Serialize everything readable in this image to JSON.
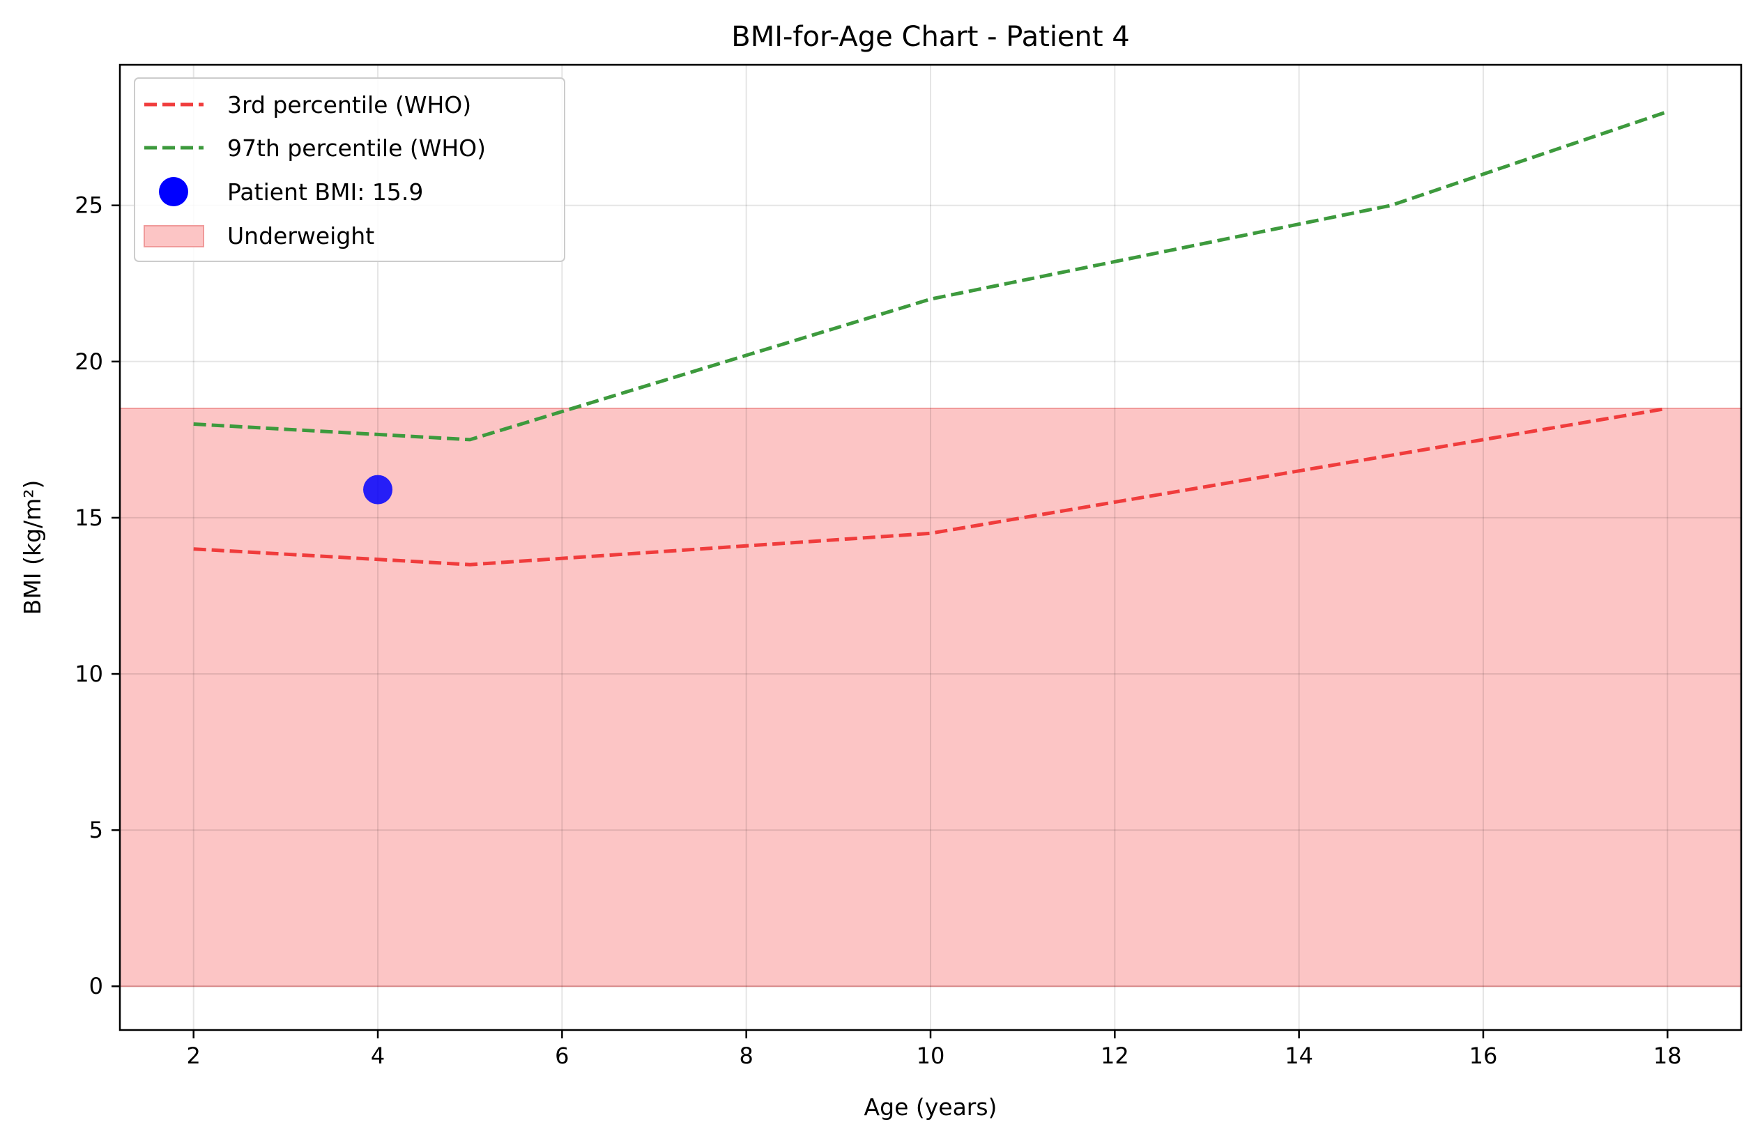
{
  "chart_data": {
    "type": "line",
    "title": "BMI-for-Age Chart - Patient 4",
    "xlabel": "Age (years)",
    "ylabel": "BMI (kg/m²)",
    "xlim": [
      1.2,
      18.8
    ],
    "ylim": [
      -1.4,
      29.5
    ],
    "xticks": [
      2,
      4,
      6,
      8,
      10,
      12,
      14,
      16,
      18
    ],
    "yticks": [
      0,
      5,
      10,
      15,
      20,
      25
    ],
    "grid": true,
    "legend_position": "top-left",
    "series": [
      {
        "name": "3rd percentile (WHO)",
        "kind": "line",
        "style": "dashed",
        "color": "#f03c3c",
        "x": [
          2,
          5,
          10,
          15,
          18
        ],
        "y": [
          14.0,
          13.5,
          14.5,
          17.0,
          18.5
        ]
      },
      {
        "name": "97th percentile (WHO)",
        "kind": "line",
        "style": "dashed",
        "color": "#3d9a3d",
        "x": [
          2,
          5,
          10,
          15,
          18
        ],
        "y": [
          18.0,
          17.5,
          22.0,
          25.0,
          28.0
        ]
      },
      {
        "name": "Patient BMI: 15.9",
        "kind": "scatter",
        "color": "#0000ff",
        "x": [
          4
        ],
        "y": [
          15.9
        ]
      },
      {
        "name": "Underweight",
        "kind": "band",
        "color": "#fcc5c5",
        "edge_color": "#f09a9a",
        "y_range": [
          0,
          18.5
        ]
      }
    ]
  }
}
